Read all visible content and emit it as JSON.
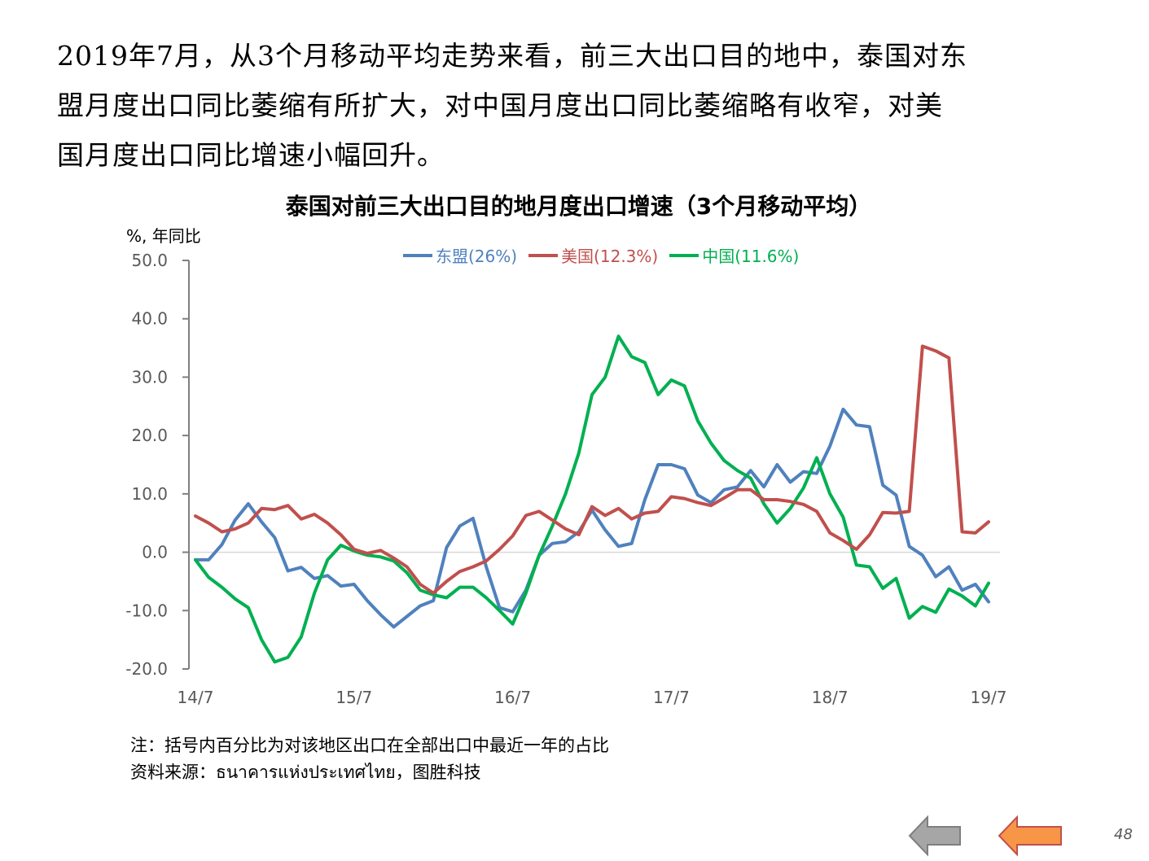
{
  "intro": {
    "line1": "2019年7月，从3个月移动平均走势来看，前三大出口目的地中，泰国对东",
    "line2": "盟月度出口同比萎缩有所扩大，对中国月度出口同比萎缩略有收窄，对美",
    "line3": "国月度出口同比增速小幅回升。"
  },
  "chart_data": {
    "type": "line",
    "title": "泰国对前三大出口目的地月度出口增速（3个月移动平均）",
    "ylabel": "%, 年同比",
    "ylim": [
      -20,
      50
    ],
    "yticks": [
      -20,
      -10,
      0,
      10,
      20,
      30,
      40,
      50
    ],
    "ytick_labels": [
      "-20.0",
      "-10.0",
      "0.0",
      "10.0",
      "20.0",
      "30.0",
      "40.0",
      "50.0"
    ],
    "x_start": "14/7",
    "xtick_labels": [
      "14/7",
      "15/7",
      "16/7",
      "17/7",
      "18/7",
      "19/7"
    ],
    "xtick_index": [
      0,
      12,
      24,
      36,
      48,
      60
    ],
    "legend_position": "top",
    "series": [
      {
        "name": "东盟(26%)",
        "color": "#4f81bd",
        "values": [
          -1.3,
          -1.3,
          1.3,
          5.5,
          8.3,
          5.2,
          2.5,
          -3.2,
          -2.6,
          -4.5,
          -4.0,
          -5.8,
          -5.5,
          -8.3,
          -10.7,
          -12.8,
          -11.0,
          -9.2,
          -8.3,
          0.8,
          4.5,
          5.8,
          -2.5,
          -9.5,
          -10.2,
          -6.5,
          -0.5,
          1.5,
          1.8,
          3.5,
          7.2,
          3.8,
          1.0,
          1.5,
          9.0,
          15.0,
          15.0,
          14.3,
          9.8,
          8.5,
          10.7,
          11.2,
          14.0,
          11.2,
          15.0,
          12.0,
          13.8,
          13.5,
          18.2,
          24.5,
          21.8,
          21.5,
          11.5,
          9.8,
          1.0,
          -0.5,
          -4.2,
          -2.5,
          -6.5,
          -5.5,
          -8.5
        ]
      },
      {
        "name": "美国(12.3%)",
        "color": "#c0504d",
        "values": [
          6.2,
          5.0,
          3.5,
          4.0,
          5.0,
          7.5,
          7.3,
          8.0,
          5.7,
          6.5,
          5.0,
          3.0,
          0.5,
          -0.2,
          0.3,
          -1.0,
          -2.5,
          -5.5,
          -7.0,
          -5.0,
          -3.3,
          -2.5,
          -1.5,
          0.5,
          2.8,
          6.3,
          7.0,
          5.5,
          4.0,
          3.0,
          7.8,
          6.3,
          7.5,
          5.7,
          6.7,
          7.0,
          9.5,
          9.2,
          8.5,
          8.0,
          9.3,
          10.7,
          10.7,
          9.0,
          9.0,
          8.7,
          8.2,
          7.0,
          3.3,
          2.0,
          0.5,
          3.0,
          6.8,
          6.7,
          7.0,
          35.3,
          34.5,
          33.3,
          3.5,
          3.3,
          5.2
        ]
      },
      {
        "name": "中国(11.6%)",
        "color": "#00b050",
        "values": [
          -1.3,
          -4.3,
          -6.0,
          -8.0,
          -9.5,
          -15.0,
          -18.8,
          -18.0,
          -14.5,
          -7.0,
          -1.3,
          1.2,
          0.2,
          -0.5,
          -0.8,
          -1.5,
          -3.5,
          -6.5,
          -7.3,
          -7.8,
          -6.0,
          -6.0,
          -7.8,
          -10.0,
          -12.3,
          -7.0,
          -0.5,
          4.5,
          10.0,
          17.0,
          27.0,
          30.0,
          37.0,
          33.5,
          32.5,
          27.0,
          29.5,
          28.5,
          22.5,
          18.7,
          15.7,
          14.0,
          12.7,
          8.3,
          5.0,
          7.5,
          11.0,
          16.2,
          10.0,
          6.0,
          -2.2,
          -2.5,
          -6.2,
          -4.5,
          -11.3,
          -9.3,
          -10.3,
          -6.3,
          -7.5,
          -9.2,
          -5.3
        ]
      }
    ]
  },
  "notes": {
    "line1": "注：括号内百分比为对该地区出口在全部出口中最近一年的占比",
    "line2": "资料来源：ธนาคารแห่งประเทศไทย，图胜科技"
  },
  "page_number": "48",
  "colors": {
    "nav_prev": "#a6a6a6",
    "nav_next": "#f79646",
    "axis": "#808080",
    "zero_line": "#d9d9d9",
    "tick_label": "#595959"
  }
}
